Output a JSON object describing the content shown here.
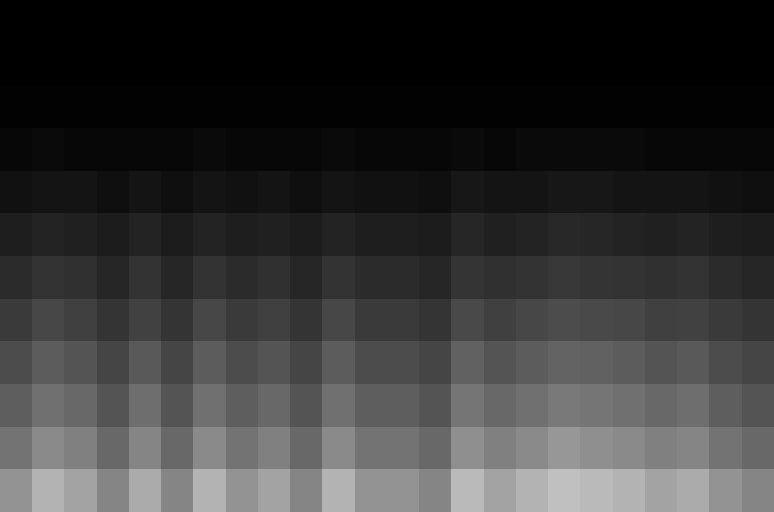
{
  "chart_data": {
    "type": "heatmap",
    "tick_labels": false,
    "color": "gray",
    "value_range": [
      0,
      100
    ],
    "cells": [
      [
        0,
        0,
        0,
        0,
        0,
        0,
        0,
        0,
        0,
        0,
        0,
        0,
        0,
        0,
        0,
        0,
        0,
        0,
        0,
        0,
        0,
        0,
        0,
        0
      ],
      [
        0,
        0,
        0,
        0,
        0,
        0,
        0,
        0,
        0,
        0,
        0,
        0,
        0,
        0,
        0,
        0,
        0,
        0,
        0,
        0,
        0,
        0,
        0,
        0
      ],
      [
        1,
        1,
        1,
        1,
        1,
        1,
        1,
        1,
        1,
        1,
        1,
        1,
        1,
        1,
        1,
        1,
        1,
        1,
        1,
        1,
        1,
        1,
        1,
        1
      ],
      [
        3,
        4,
        3,
        3,
        3,
        3,
        4,
        3,
        3,
        3,
        4,
        3,
        3,
        3,
        4,
        3,
        4,
        4,
        4,
        4,
        3,
        3,
        3,
        3
      ],
      [
        7,
        8,
        8,
        6,
        8,
        6,
        8,
        7,
        8,
        6,
        8,
        7,
        7,
        6,
        9,
        8,
        8,
        9,
        9,
        8,
        8,
        8,
        7,
        6
      ],
      [
        12,
        14,
        13,
        11,
        14,
        11,
        14,
        12,
        13,
        11,
        14,
        12,
        12,
        11,
        15,
        13,
        14,
        16,
        15,
        14,
        13,
        14,
        12,
        11
      ],
      [
        17,
        20,
        19,
        15,
        20,
        15,
        20,
        17,
        19,
        15,
        20,
        17,
        17,
        15,
        21,
        19,
        20,
        22,
        21,
        20,
        19,
        20,
        17,
        15
      ],
      [
        23,
        28,
        25,
        21,
        26,
        21,
        28,
        23,
        25,
        21,
        28,
        23,
        23,
        21,
        29,
        25,
        28,
        30,
        29,
        28,
        25,
        26,
        23,
        21
      ],
      [
        30,
        36,
        33,
        27,
        35,
        27,
        36,
        30,
        33,
        27,
        36,
        30,
        30,
        27,
        38,
        33,
        36,
        39,
        38,
        36,
        33,
        35,
        30,
        27
      ],
      [
        37,
        44,
        41,
        33,
        43,
        33,
        44,
        37,
        41,
        33,
        44,
        37,
        37,
        33,
        46,
        41,
        44,
        48,
        46,
        44,
        41,
        43,
        37,
        33
      ],
      [
        45,
        54,
        50,
        41,
        52,
        41,
        54,
        45,
        50,
        41,
        54,
        45,
        45,
        41,
        56,
        50,
        54,
        59,
        56,
        54,
        50,
        52,
        45,
        41
      ],
      [
        58,
        70,
        64,
        52,
        67,
        52,
        70,
        58,
        64,
        52,
        70,
        58,
        58,
        52,
        73,
        64,
        70,
        75,
        73,
        70,
        64,
        67,
        58,
        52
      ]
    ]
  }
}
